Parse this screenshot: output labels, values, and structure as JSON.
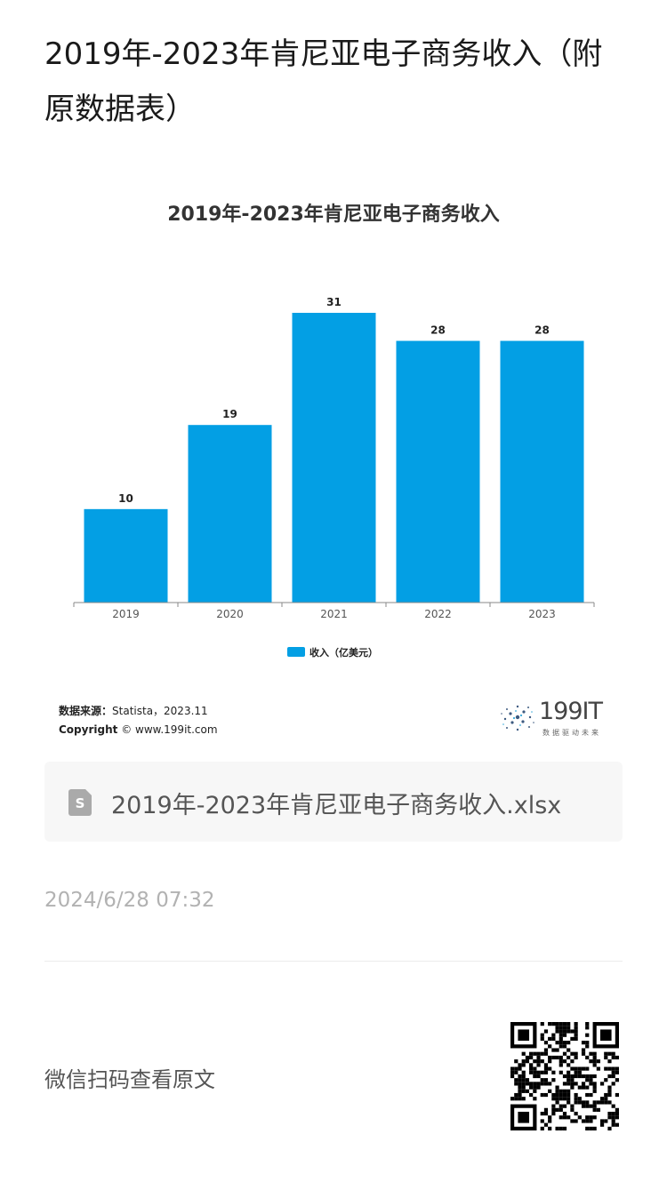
{
  "article": {
    "title": "2019年-2023年肯尼亚电子商务收入（附原数据表）",
    "publish_time": "2024/6/28 07:32"
  },
  "chart_data": {
    "type": "bar",
    "title": "2019年-2023年肯尼亚电子商务收入",
    "categories": [
      "2019",
      "2020",
      "2021",
      "2022",
      "2023"
    ],
    "series": [
      {
        "name": "收入（亿美元）",
        "values": [
          10,
          19,
          31,
          28,
          28
        ]
      }
    ],
    "ylim": [
      0,
      31
    ],
    "grid": false,
    "legend_position": "bottom",
    "bar_color": "#039fe4"
  },
  "source": {
    "source_label": "数据来源：",
    "source_value": "Statista，2023.11",
    "copyright_label": "Copyright",
    "copyright_value": " © www.199it.com"
  },
  "logo": {
    "text": "199IT",
    "subtitle": "数据驱动未来"
  },
  "attachment": {
    "file_name": "2019年-2023年肯尼亚电子商务收入.xlsx",
    "icon": "spreadsheet-file-icon"
  },
  "footer": {
    "qr_caption": "微信扫码查看原文",
    "qr_icon": "qr-code-icon"
  }
}
